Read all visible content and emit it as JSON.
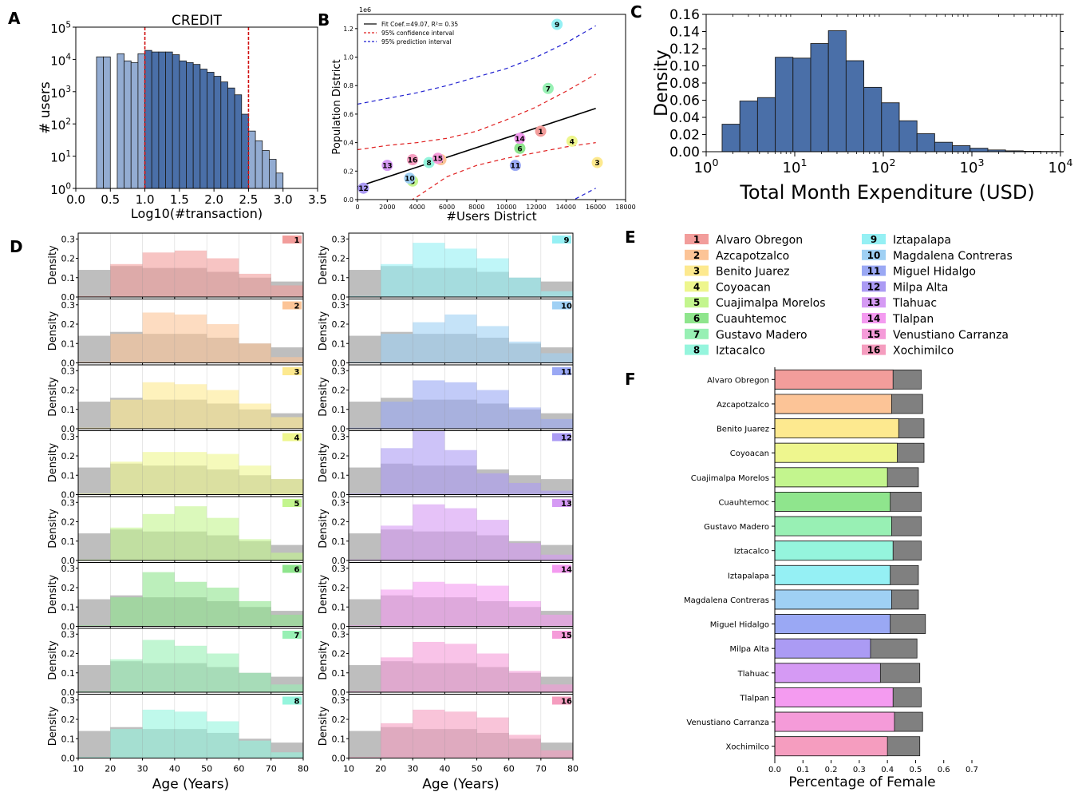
{
  "panel_labels": [
    "A",
    "B",
    "C",
    "D",
    "E",
    "F"
  ],
  "colors": [
    "#f29d9b",
    "#fcc497",
    "#fde98f",
    "#eef68e",
    "#c3f58e",
    "#8fe58d",
    "#98f0b4",
    "#95f5dd",
    "#95f0f4",
    "#9fd0f4",
    "#9aa8f4",
    "#ab9bf4",
    "#d59af4",
    "#f49bf0",
    "#f59bd9",
    "#f59dbf"
  ],
  "gray_color": "#a8a8a8",
  "districts": [
    {
      "num": "1",
      "name": "Alvaro Obregon"
    },
    {
      "num": "2",
      "name": "Azcapotzalco"
    },
    {
      "num": "3",
      "name": "Benito Juarez"
    },
    {
      "num": "4",
      "name": "Coyoacan"
    },
    {
      "num": "5",
      "name": "Cuajimalpa Morelos"
    },
    {
      "num": "6",
      "name": "Cuauhtemoc"
    },
    {
      "num": "7",
      "name": "Gustavo Madero"
    },
    {
      "num": "8",
      "name": "Iztacalco"
    },
    {
      "num": "9",
      "name": "Iztapalapa"
    },
    {
      "num": "10",
      "name": "Magdalena Contreras"
    },
    {
      "num": "11",
      "name": "Miguel Hidalgo"
    },
    {
      "num": "12",
      "name": "Milpa Alta"
    },
    {
      "num": "13",
      "name": "Tlahuac"
    },
    {
      "num": "14",
      "name": "Tlalpan"
    },
    {
      "num": "15",
      "name": "Venustiano Carranza"
    },
    {
      "num": "16",
      "name": "Xochimilco"
    }
  ],
  "chart_data": [
    {
      "id": "A",
      "type": "bar",
      "title": "CREDIT",
      "xlabel": "Log10(#transaction)",
      "ylabel": "# users",
      "xlim": [
        0,
        3.5
      ],
      "ylim_log10": [
        0,
        5
      ],
      "yscale": "log",
      "xticks": [
        "0.0",
        "0.5",
        "1.0",
        "1.5",
        "2.0",
        "2.5",
        "3.0",
        "3.5"
      ],
      "yticks": [
        "10",
        "10",
        "10",
        "10",
        "10",
        "10"
      ],
      "yticks_exp": [
        "0",
        "1",
        "2",
        "3",
        "4",
        "5"
      ],
      "bin_width": 0.1,
      "bins": [
        {
          "x0": 0.3,
          "v": 12000,
          "hl": false
        },
        {
          "x0": 0.4,
          "v": 12000,
          "hl": false
        },
        {
          "x0": 0.6,
          "v": 15000,
          "hl": false
        },
        {
          "x0": 0.7,
          "v": 9000,
          "hl": false
        },
        {
          "x0": 0.8,
          "v": 8000,
          "hl": false
        },
        {
          "x0": 0.9,
          "v": 15000,
          "hl": false
        },
        {
          "x0": 1.0,
          "v": 19000,
          "hl": true
        },
        {
          "x0": 1.1,
          "v": 17000,
          "hl": true
        },
        {
          "x0": 1.2,
          "v": 17000,
          "hl": true
        },
        {
          "x0": 1.3,
          "v": 17000,
          "hl": true
        },
        {
          "x0": 1.4,
          "v": 14000,
          "hl": true
        },
        {
          "x0": 1.5,
          "v": 9000,
          "hl": true
        },
        {
          "x0": 1.6,
          "v": 8000,
          "hl": true
        },
        {
          "x0": 1.7,
          "v": 7000,
          "hl": true
        },
        {
          "x0": 1.8,
          "v": 5000,
          "hl": true
        },
        {
          "x0": 1.9,
          "v": 4000,
          "hl": true
        },
        {
          "x0": 2.0,
          "v": 3000,
          "hl": true
        },
        {
          "x0": 2.1,
          "v": 2000,
          "hl": true
        },
        {
          "x0": 2.2,
          "v": 1300,
          "hl": true
        },
        {
          "x0": 2.3,
          "v": 800,
          "hl": true
        },
        {
          "x0": 2.4,
          "v": 200,
          "hl": true
        },
        {
          "x0": 2.5,
          "v": 60,
          "hl": false
        },
        {
          "x0": 2.6,
          "v": 30,
          "hl": false
        },
        {
          "x0": 2.7,
          "v": 15,
          "hl": false
        },
        {
          "x0": 2.8,
          "v": 8,
          "hl": false
        },
        {
          "x0": 2.9,
          "v": 3,
          "hl": false
        }
      ],
      "vlines": [
        1.0,
        2.5
      ]
    },
    {
      "id": "B",
      "type": "scatter",
      "xlabel": "#Users District",
      "ylabel": "Population District",
      "y_offset_label": "1e6",
      "xlim": [
        0,
        18000
      ],
      "ylim": [
        0,
        1.3
      ],
      "xticks": [
        "0",
        "2000",
        "4000",
        "6000",
        "8000",
        "10000",
        "12000",
        "14000",
        "16000",
        "18000"
      ],
      "yticks": [
        "0.0",
        "0.2",
        "0.4",
        "0.6",
        "0.8",
        "1.0",
        "1.2"
      ],
      "legend": [
        "Fit Coef.=49.07,  R²=   0.35",
        "95% confidence interval",
        "95% prediction interval"
      ],
      "legend_position": "top-left",
      "fit": {
        "x": [
          0,
          16000
        ],
        "y": [
          0.09,
          0.64
        ]
      },
      "confidence": {
        "x": [
          0,
          2000,
          4000,
          6000,
          8000,
          10000,
          12000,
          14000,
          16000
        ],
        "upper": [
          0.35,
          0.38,
          0.4,
          0.43,
          0.48,
          0.56,
          0.65,
          0.76,
          0.88
        ],
        "lower": [
          -0.15,
          -0.1,
          0.02,
          0.16,
          0.24,
          0.29,
          0.33,
          0.37,
          0.4
        ]
      },
      "prediction": {
        "x": [
          0,
          2000,
          4000,
          6000,
          8000,
          10000,
          12000,
          14000,
          16000
        ],
        "upper": [
          0.67,
          0.71,
          0.75,
          0.8,
          0.86,
          0.92,
          1.0,
          1.1,
          1.22
        ],
        "lower": [
          -0.49,
          -0.44,
          -0.39,
          -0.34,
          -0.28,
          -0.21,
          -0.13,
          -0.03,
          0.08
        ]
      },
      "points": [
        {
          "label": "1",
          "x": 12300,
          "y": 0.48
        },
        {
          "label": "2",
          "x": 5600,
          "y": 0.28
        },
        {
          "label": "3",
          "x": 16100,
          "y": 0.26
        },
        {
          "label": "4",
          "x": 14400,
          "y": 0.41
        },
        {
          "label": "5",
          "x": 3700,
          "y": 0.13
        },
        {
          "label": "6",
          "x": 10900,
          "y": 0.36
        },
        {
          "label": "7",
          "x": 12800,
          "y": 0.78
        },
        {
          "label": "8",
          "x": 4800,
          "y": 0.26
        },
        {
          "label": "9",
          "x": 13400,
          "y": 1.23
        },
        {
          "label": "10",
          "x": 3500,
          "y": 0.15
        },
        {
          "label": "11",
          "x": 10600,
          "y": 0.24
        },
        {
          "label": "12",
          "x": 400,
          "y": 0.08
        },
        {
          "label": "13",
          "x": 2000,
          "y": 0.24
        },
        {
          "label": "14",
          "x": 10900,
          "y": 0.43
        },
        {
          "label": "15",
          "x": 5400,
          "y": 0.29
        },
        {
          "label": "16",
          "x": 3700,
          "y": 0.28
        }
      ]
    },
    {
      "id": "C",
      "type": "bar",
      "xscale": "log",
      "xlabel": "Total Month Expenditure (USD)",
      "ylabel": "Density",
      "xlim_log10": [
        0,
        4
      ],
      "ylim": [
        0,
        0.16
      ],
      "xticks": [
        "10",
        "10",
        "10",
        "10",
        "10"
      ],
      "xticks_exp": [
        "0",
        "1",
        "2",
        "3",
        "4"
      ],
      "yticks": [
        "0.00",
        "0.02",
        "0.04",
        "0.06",
        "0.08",
        "0.10",
        "0.12",
        "0.14",
        "0.16"
      ],
      "bin_edges_log10": [
        0.18,
        0.38,
        0.58,
        0.78,
        0.98,
        1.18,
        1.38,
        1.58,
        1.78,
        1.98,
        2.18,
        2.38,
        2.58,
        2.78,
        2.98,
        3.18,
        3.38,
        3.58,
        3.78,
        3.98
      ],
      "values": [
        0.032,
        0.059,
        0.063,
        0.11,
        0.109,
        0.126,
        0.141,
        0.106,
        0.075,
        0.057,
        0.036,
        0.021,
        0.011,
        0.007,
        0.004,
        0.002,
        0.001,
        0.0005,
        0.0003
      ]
    },
    {
      "id": "D",
      "type": "bar",
      "xlabel": "Age (Years)",
      "ylabel": "Density",
      "xlim": [
        10,
        80
      ],
      "ylim": [
        0,
        0.33
      ],
      "xticks": [
        "10",
        "20",
        "30",
        "40",
        "50",
        "60",
        "70",
        "80"
      ],
      "yticks": [
        "0.0",
        "0.1",
        "0.2",
        "0.3"
      ],
      "bin_edges": [
        0,
        20,
        30,
        40,
        50,
        60,
        70,
        80
      ],
      "overall": [
        0.14,
        0.16,
        0.15,
        0.15,
        0.13,
        0.1,
        0.08
      ],
      "districts": [
        [
          0.005,
          0.17,
          0.23,
          0.24,
          0.2,
          0.12,
          0.06
        ],
        [
          0.005,
          0.15,
          0.26,
          0.25,
          0.2,
          0.1,
          0.03
        ],
        [
          0.005,
          0.15,
          0.24,
          0.23,
          0.2,
          0.13,
          0.06
        ],
        [
          0.005,
          0.17,
          0.22,
          0.22,
          0.21,
          0.15,
          0.08
        ],
        [
          0.005,
          0.17,
          0.24,
          0.28,
          0.22,
          0.11,
          0.04
        ],
        [
          0.005,
          0.15,
          0.28,
          0.23,
          0.2,
          0.13,
          0.06
        ],
        [
          0.005,
          0.17,
          0.27,
          0.24,
          0.2,
          0.1,
          0.04
        ],
        [
          0.005,
          0.15,
          0.25,
          0.24,
          0.19,
          0.09,
          0.03
        ],
        [
          0.005,
          0.17,
          0.28,
          0.25,
          0.2,
          0.1,
          0.03
        ],
        [
          0.005,
          0.15,
          0.21,
          0.25,
          0.19,
          0.11,
          0.05
        ],
        [
          0.005,
          0.14,
          0.25,
          0.24,
          0.2,
          0.11,
          0.05
        ],
        [
          0.005,
          0.24,
          0.33,
          0.23,
          0.11,
          0.06,
          0.02
        ],
        [
          0.005,
          0.18,
          0.29,
          0.27,
          0.21,
          0.09,
          0.03
        ],
        [
          0.005,
          0.19,
          0.23,
          0.22,
          0.21,
          0.13,
          0.06
        ],
        [
          0.005,
          0.18,
          0.26,
          0.25,
          0.2,
          0.11,
          0.04
        ],
        [
          0.005,
          0.18,
          0.25,
          0.24,
          0.21,
          0.12,
          0.04
        ]
      ]
    },
    {
      "id": "F",
      "type": "bar",
      "orientation": "horizontal",
      "xlabel": "Percentage of Female",
      "xlim": [
        0,
        0.7
      ],
      "xticks": [
        "0.0",
        "0.1",
        "0.2",
        "0.3",
        "0.4",
        "0.5",
        "0.6",
        "0.7"
      ],
      "categories": [
        "Alvaro Obregon",
        "Azcapotzalco",
        "Benito Juarez",
        "Coyoacan",
        "Cuajimalpa Morelos",
        "Cuauhtemoc",
        "Gustavo Madero",
        "Iztacalco",
        "Iztapalapa",
        "Magdalena Contreras",
        "Miguel Hidalgo",
        "Milpa Alta",
        "Tlahuac",
        "Tlalpan",
        "Venustiano Carranza",
        "Xochimilco"
      ],
      "female": [
        0.42,
        0.415,
        0.44,
        0.435,
        0.4,
        0.41,
        0.415,
        0.42,
        0.41,
        0.415,
        0.41,
        0.34,
        0.375,
        0.42,
        0.425,
        0.4
      ],
      "totals": [
        0.52,
        0.525,
        0.53,
        0.53,
        0.51,
        0.52,
        0.52,
        0.52,
        0.51,
        0.51,
        0.535,
        0.505,
        0.515,
        0.52,
        0.525,
        0.515
      ]
    }
  ]
}
